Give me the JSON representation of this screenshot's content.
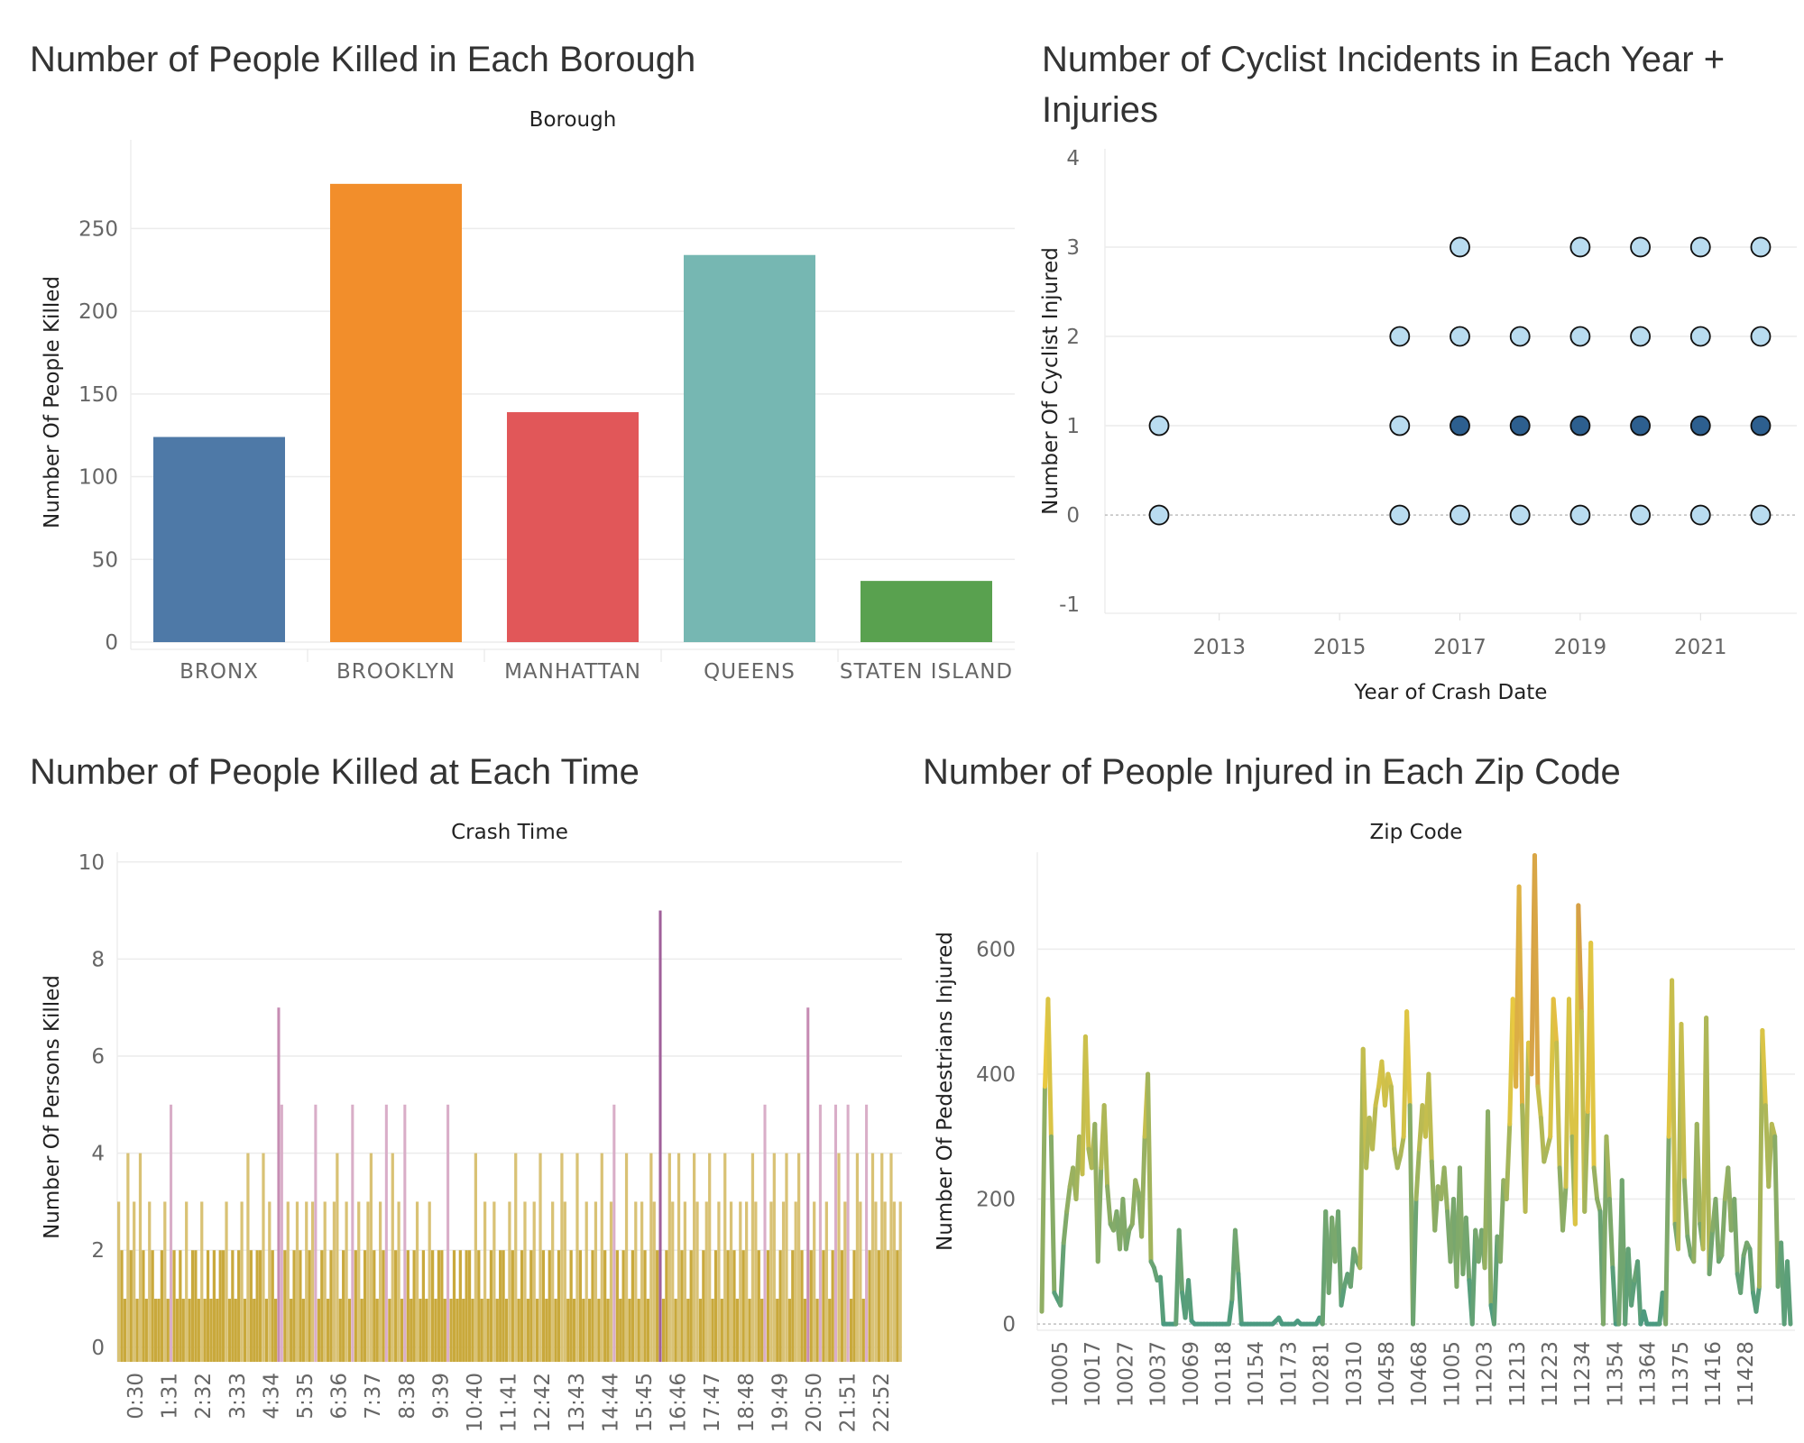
{
  "chart_data": [
    {
      "type": "bar",
      "title": "Number of People Killed in Each Borough",
      "xlabel": "Borough",
      "ylabel": "Number Of People Killed",
      "categories": [
        "BRONX",
        "BROOKLYN",
        "MANHATTAN",
        "QUEENS",
        "STATEN ISLAND"
      ],
      "values": [
        124,
        277,
        139,
        234,
        37
      ],
      "colors": [
        "#4e79a7",
        "#f28e2b",
        "#e15759",
        "#76b7b2",
        "#59a14f"
      ],
      "ylim": [
        0,
        290
      ],
      "yticks": [
        0,
        50,
        100,
        150,
        200,
        250
      ],
      "grid": true
    },
    {
      "type": "scatter",
      "title": "Number of Cyclist Incidents in Each Year + Injuries",
      "xlabel": "Year of Crash Date",
      "ylabel": "Number Of Cyclist Injured",
      "xlim": [
        2011.1,
        2022.6
      ],
      "ylim": [
        -1.1,
        4.1
      ],
      "xticks": [
        2013,
        2015,
        2017,
        2019,
        2021
      ],
      "yticks": [
        -1,
        0,
        1,
        2,
        3,
        4
      ],
      "light_color": "#b9dcf0",
      "dark_color": "#2d5f8f",
      "points": [
        {
          "x": 2012,
          "y": 1,
          "shade": "light"
        },
        {
          "x": 2012,
          "y": 0,
          "shade": "light"
        },
        {
          "x": 2016,
          "y": 2,
          "shade": "light"
        },
        {
          "x": 2016,
          "y": 1,
          "shade": "light"
        },
        {
          "x": 2016,
          "y": 0,
          "shade": "light"
        },
        {
          "x": 2017,
          "y": 3,
          "shade": "light"
        },
        {
          "x": 2017,
          "y": 2,
          "shade": "light"
        },
        {
          "x": 2017,
          "y": 1,
          "shade": "dark"
        },
        {
          "x": 2017,
          "y": 0,
          "shade": "light"
        },
        {
          "x": 2018,
          "y": 2,
          "shade": "light"
        },
        {
          "x": 2018,
          "y": 1,
          "shade": "dark"
        },
        {
          "x": 2018,
          "y": 0,
          "shade": "light"
        },
        {
          "x": 2019,
          "y": 3,
          "shade": "light"
        },
        {
          "x": 2019,
          "y": 2,
          "shade": "light"
        },
        {
          "x": 2019,
          "y": 1,
          "shade": "dark"
        },
        {
          "x": 2019,
          "y": 0,
          "shade": "light"
        },
        {
          "x": 2020,
          "y": 3,
          "shade": "light"
        },
        {
          "x": 2020,
          "y": 2,
          "shade": "light"
        },
        {
          "x": 2020,
          "y": 1,
          "shade": "dark"
        },
        {
          "x": 2020,
          "y": 0,
          "shade": "light"
        },
        {
          "x": 2021,
          "y": 3,
          "shade": "light"
        },
        {
          "x": 2021,
          "y": 2,
          "shade": "light"
        },
        {
          "x": 2021,
          "y": 1,
          "shade": "dark"
        },
        {
          "x": 2021,
          "y": 0,
          "shade": "light"
        },
        {
          "x": 2022,
          "y": 3,
          "shade": "light"
        },
        {
          "x": 2022,
          "y": 2,
          "shade": "light"
        },
        {
          "x": 2022,
          "y": 1,
          "shade": "dark"
        },
        {
          "x": 2022,
          "y": 0,
          "shade": "light"
        }
      ],
      "grid": true
    },
    {
      "type": "bar",
      "title": "Number of People Killed at Each Time",
      "xlabel": "Crash Time",
      "ylabel": "Number Of Persons Killed",
      "ylim": [
        -0.3,
        10.2
      ],
      "yticks": [
        0,
        2,
        4,
        6,
        8,
        10
      ],
      "xtick_labels": [
        "0:30",
        "1:31",
        "2:32",
        "3:33",
        "4:34",
        "5:35",
        "6:36",
        "7:37",
        "8:38",
        "9:39",
        "10:40",
        "11:41",
        "12:42",
        "13:43",
        "14:44",
        "15:45",
        "16:46",
        "17:47",
        "18:48",
        "19:49",
        "20:50",
        "21:51",
        "22:52"
      ],
      "colors": {
        "low": "#c9a93c",
        "mid": "#d9c275",
        "high5": "#d9aec8",
        "high7": "#c68cb3",
        "peak": "#a0609a"
      },
      "values": [
        3,
        2,
        1,
        4,
        2,
        3,
        1,
        4,
        2,
        1,
        3,
        2,
        1,
        1,
        2,
        3,
        1,
        5,
        2,
        1,
        2,
        1,
        3,
        1,
        2,
        2,
        1,
        3,
        1,
        2,
        1,
        2,
        1,
        2,
        2,
        3,
        1,
        2,
        1,
        2,
        3,
        1,
        4,
        2,
        1,
        2,
        2,
        4,
        1,
        3,
        2,
        1,
        7,
        5,
        2,
        3,
        1,
        2,
        3,
        2,
        1,
        3,
        2,
        3,
        5,
        1,
        2,
        3,
        1,
        2,
        3,
        4,
        1,
        2,
        3,
        1,
        5,
        2,
        3,
        1,
        2,
        3,
        4,
        2,
        1,
        3,
        2,
        5,
        1,
        4,
        2,
        3,
        1,
        5,
        2,
        1,
        2,
        3,
        1,
        2,
        1,
        3,
        2,
        1,
        2,
        2,
        1,
        5,
        1,
        2,
        1,
        2,
        1,
        2,
        2,
        1,
        4,
        2,
        1,
        3,
        1,
        2,
        3,
        1,
        2,
        2,
        1,
        3,
        2,
        4,
        1,
        2,
        3,
        1,
        2,
        3,
        1,
        4,
        2,
        1,
        2,
        3,
        1,
        2,
        4,
        3,
        1,
        2,
        1,
        4,
        2,
        1,
        3,
        1,
        2,
        3,
        1,
        4,
        2,
        1,
        3,
        5,
        2,
        1,
        2,
        4,
        1,
        2,
        3,
        1,
        3,
        2,
        1,
        4,
        3,
        2,
        9,
        1,
        2,
        4,
        3,
        1,
        4,
        2,
        3,
        1,
        2,
        4,
        3,
        1,
        2,
        3,
        4,
        1,
        2,
        3,
        1,
        4,
        2,
        3,
        2,
        1,
        3,
        2,
        3,
        1,
        4,
        3,
        2,
        1,
        5,
        2,
        3,
        4,
        1,
        2,
        3,
        4,
        1,
        2,
        3,
        4,
        2,
        1,
        7,
        2,
        3,
        1,
        5,
        2,
        3,
        1,
        2,
        5,
        4,
        2,
        3,
        5,
        1,
        2,
        4,
        3,
        1,
        5,
        2,
        4,
        3,
        2,
        4,
        3,
        2,
        4,
        3,
        2,
        3
      ],
      "grid": true
    },
    {
      "type": "line",
      "title": "Number of People Injured in Each Zip Code",
      "xlabel": "Zip Code",
      "ylabel": "Number Of Pedestrians Injured",
      "ylim": [
        -10,
        755
      ],
      "yticks": [
        0,
        200,
        400,
        600
      ],
      "xtick_labels": [
        "10005",
        "10017",
        "10027",
        "10037",
        "10069",
        "10118",
        "10154",
        "10173",
        "10281",
        "10310",
        "10458",
        "10468",
        "11005",
        "11203",
        "11213",
        "11223",
        "11234",
        "11354",
        "11364",
        "11375",
        "11416",
        "11428"
      ],
      "color_scale": {
        "low": "#4a9a80",
        "mid": "#e8c840",
        "high": "#c07050"
      },
      "values": [
        20,
        380,
        520,
        300,
        50,
        40,
        30,
        130,
        180,
        220,
        250,
        200,
        300,
        240,
        460,
        280,
        250,
        320,
        100,
        250,
        350,
        220,
        160,
        150,
        180,
        120,
        200,
        120,
        150,
        160,
        230,
        210,
        140,
        300,
        400,
        100,
        90,
        70,
        75,
        0,
        0,
        0,
        0,
        0,
        150,
        50,
        10,
        70,
        5,
        0,
        0,
        0,
        0,
        0,
        0,
        0,
        0,
        0,
        0,
        0,
        0,
        40,
        150,
        80,
        0,
        0,
        0,
        0,
        0,
        0,
        0,
        0,
        0,
        0,
        0,
        5,
        10,
        0,
        0,
        0,
        0,
        0,
        5,
        0,
        0,
        0,
        0,
        0,
        0,
        10,
        0,
        180,
        50,
        170,
        100,
        180,
        30,
        60,
        80,
        60,
        120,
        100,
        90,
        440,
        250,
        330,
        280,
        350,
        380,
        420,
        350,
        400,
        380,
        280,
        250,
        270,
        300,
        500,
        350,
        0,
        200,
        280,
        350,
        300,
        400,
        260,
        150,
        220,
        200,
        250,
        180,
        100,
        200,
        60,
        250,
        80,
        170,
        70,
        0,
        150,
        100,
        150,
        90,
        340,
        30,
        0,
        140,
        100,
        230,
        200,
        320,
        520,
        380,
        700,
        350,
        180,
        450,
        400,
        750,
        380,
        330,
        260,
        280,
        300,
        520,
        450,
        250,
        150,
        220,
        520,
        300,
        160,
        670,
        500,
        180,
        340,
        610,
        250,
        200,
        180,
        0,
        300,
        200,
        90,
        0,
        0,
        230,
        0,
        120,
        30,
        70,
        100,
        0,
        20,
        0,
        0,
        0,
        0,
        0,
        50,
        0,
        300,
        550,
        160,
        120,
        480,
        230,
        140,
        110,
        100,
        320,
        160,
        120,
        490,
        80,
        150,
        200,
        100,
        110,
        200,
        250,
        150,
        200,
        80,
        50,
        110,
        130,
        120,
        50,
        20,
        60,
        470,
        350,
        220,
        320,
        300,
        60,
        130,
        0,
        100,
        0
      ]
    }
  ]
}
